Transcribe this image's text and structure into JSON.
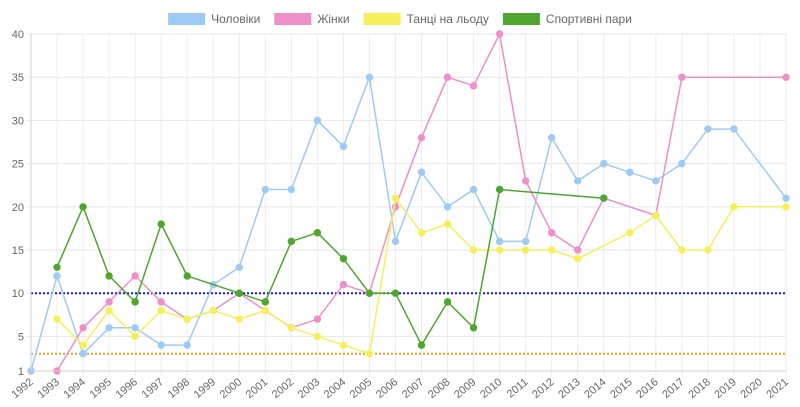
{
  "chart_data": {
    "type": "line",
    "x": [
      "1992",
      "1993",
      "1994",
      "1995",
      "1996",
      "1997",
      "1998",
      "1999",
      "2000",
      "2001",
      "2002",
      "2003",
      "2004",
      "2005",
      "2006",
      "2007",
      "2008",
      "2009",
      "2010",
      "2011",
      "2012",
      "2013",
      "2014",
      "2015",
      "2016",
      "2017",
      "2018",
      "2019",
      "2020",
      "2021"
    ],
    "ylim": [
      1,
      40
    ],
    "y_ticks": [
      1,
      5,
      10,
      15,
      20,
      25,
      30,
      35,
      40
    ],
    "grid": true,
    "legend_position": "top",
    "series": [
      {
        "name": "Чоловіки",
        "color": "#9ecbf5",
        "values": [
          1,
          12,
          3,
          6,
          6,
          4,
          4,
          11,
          13,
          22,
          22,
          30,
          27,
          35,
          16,
          24,
          20,
          22,
          16,
          16,
          28,
          23,
          25,
          24,
          23,
          25,
          29,
          29,
          null,
          21
        ]
      },
      {
        "name": "Жінки",
        "color": "#ef8fc7",
        "values": [
          null,
          1,
          6,
          9,
          12,
          9,
          7,
          8,
          10,
          8,
          6,
          7,
          11,
          10,
          20,
          28,
          35,
          34,
          40,
          23,
          17,
          15,
          21,
          null,
          19,
          35,
          null,
          null,
          null,
          35
        ]
      },
      {
        "name": "Танці на льоду",
        "color": "#f7ef5a",
        "values": [
          null,
          7,
          4,
          8,
          5,
          8,
          7,
          8,
          7,
          8,
          6,
          5,
          4,
          3,
          21,
          17,
          18,
          15,
          15,
          15,
          15,
          14,
          null,
          17,
          19,
          15,
          15,
          20,
          null,
          20
        ]
      },
      {
        "name": "Спортивні пари",
        "color": "#4ea62e",
        "values": [
          null,
          13,
          20,
          12,
          9,
          18,
          12,
          null,
          10,
          9,
          16,
          17,
          14,
          10,
          10,
          4,
          9,
          6,
          22,
          null,
          null,
          null,
          21,
          null,
          null,
          null,
          null,
          null,
          null,
          null
        ]
      }
    ],
    "reference_lines": [
      {
        "value": 10,
        "color": "#1a1ad9"
      },
      {
        "value": 3,
        "color": "#f0a020"
      }
    ]
  }
}
